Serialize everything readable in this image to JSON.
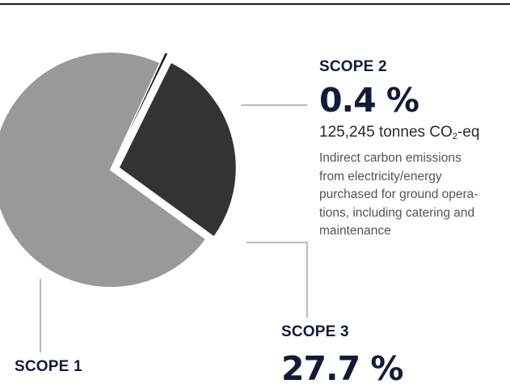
{
  "chart_data": {
    "type": "pie",
    "title": "",
    "slices": [
      {
        "name": "SCOPE 1",
        "percent": 71.9,
        "color": "#999999",
        "exploded": false
      },
      {
        "name": "SCOPE 2",
        "percent": 0.4,
        "color": "#1a1a1a",
        "exploded": true
      },
      {
        "name": "SCOPE 3",
        "percent": 27.7,
        "color": "#333333",
        "exploded": true
      }
    ]
  },
  "labels": {
    "scope1": {
      "title": "SCOPE 1"
    },
    "scope2": {
      "title": "SCOPE 2",
      "percent": "0.4 %",
      "tonnes_value": "125,245 tonnes CO",
      "tonnes_sub": "2",
      "tonnes_suffix": "-eq",
      "desc_lines": [
        "Indirect carbon emissions",
        "from electricity/energy",
        "purchased for ground opera-",
        "tions, including catering and",
        "maintenance"
      ]
    },
    "scope3": {
      "title": "SCOPE 3",
      "percent": "27.7 %"
    }
  },
  "colors": {
    "rule": "#101838",
    "leader": "#777777"
  }
}
